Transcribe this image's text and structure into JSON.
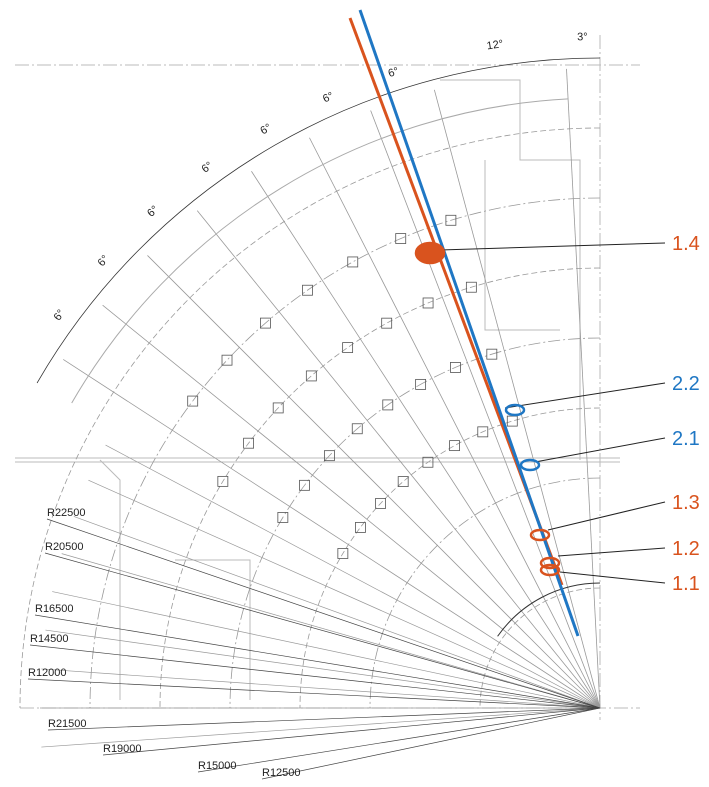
{
  "angle_labels": [
    "3°",
    "12°",
    "6°",
    "6°",
    "6°",
    "6°",
    "6°",
    "6°",
    "6°"
  ],
  "radius_labels": [
    "R22500",
    "R20500",
    "R16500",
    "R14500",
    "R12000",
    "R21500",
    "R19000",
    "R15000",
    "R12500"
  ],
  "callouts": [
    "1.4",
    "2.2",
    "2.1",
    "1.3",
    "1.2",
    "1.1"
  ]
}
